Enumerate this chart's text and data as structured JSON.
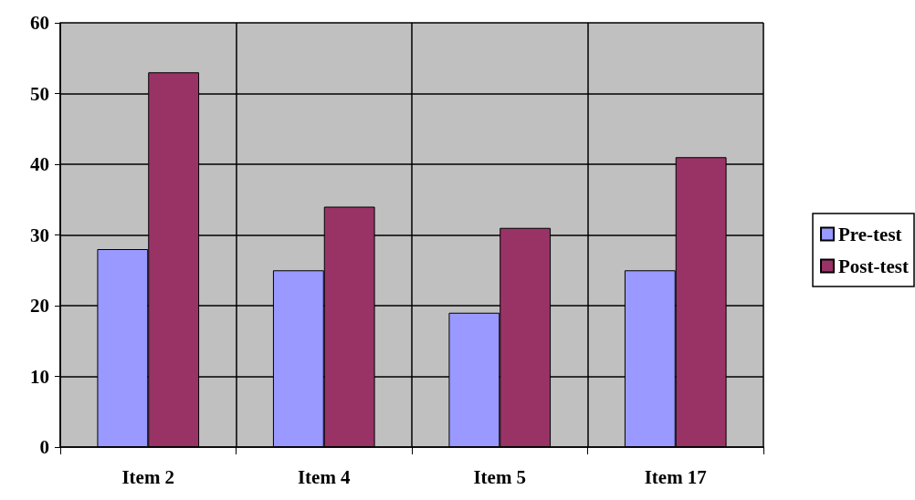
{
  "chart_data": {
    "type": "bar",
    "categories": [
      "Item 2",
      "Item 4",
      "Item 5",
      "Item 17"
    ],
    "series": [
      {
        "name": "Pre-test",
        "color": "#9999ff",
        "values": [
          28,
          25,
          19,
          25
        ]
      },
      {
        "name": "Post-test",
        "color": "#993366",
        "values": [
          53,
          34,
          31,
          41
        ]
      }
    ],
    "ylim": [
      0,
      60
    ],
    "yticks": [
      0,
      10,
      20,
      30,
      40,
      50,
      60
    ],
    "grid": true,
    "legend": "right"
  }
}
